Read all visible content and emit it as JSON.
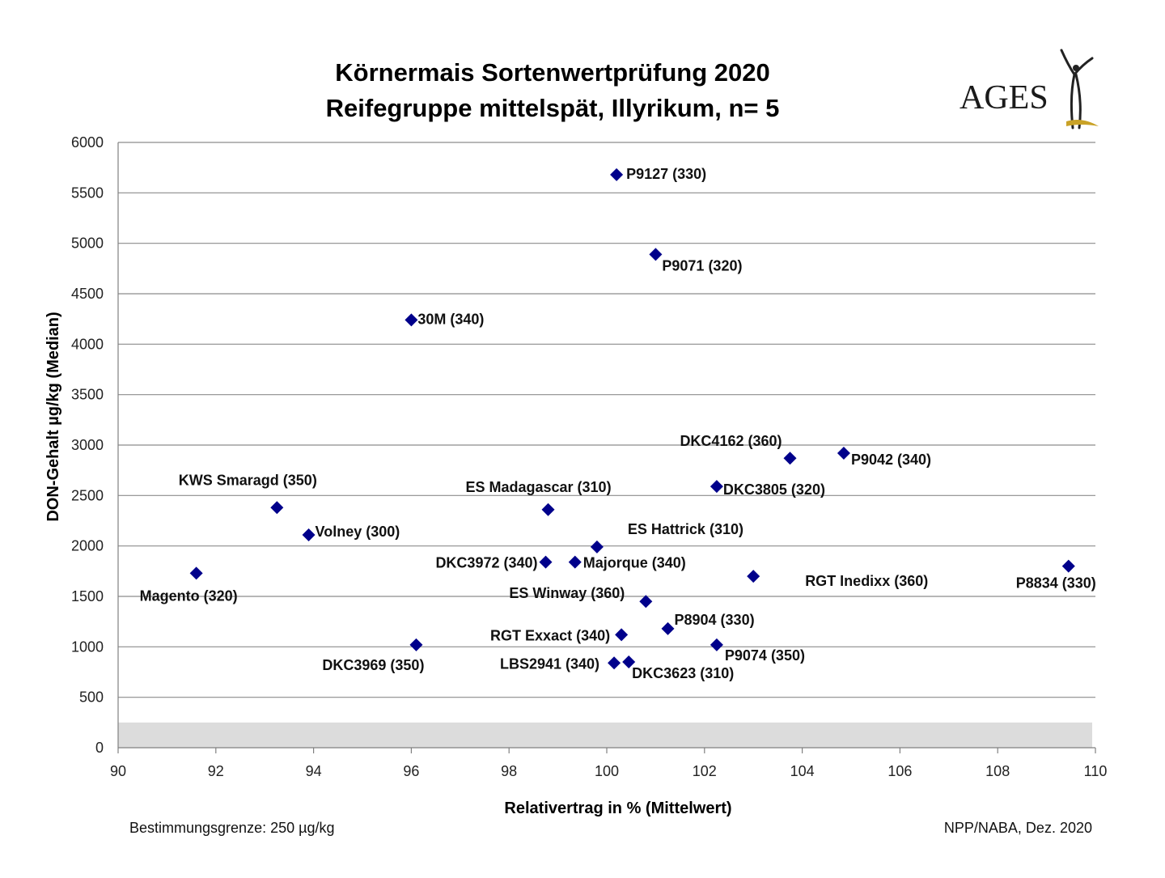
{
  "chart_data": {
    "type": "scatter",
    "title": "Körnermais Sortenwertprüfung 2020",
    "subtitle": "Reifegruppe mittelspät, Illyrikum, n= 5",
    "xlabel": "Relativertrag in % (Mittelwert)",
    "ylabel": "DON-Gehalt µg/kg (Median)",
    "xlim": [
      90,
      110
    ],
    "ylim": [
      0,
      6000
    ],
    "x_ticks": [
      90,
      92,
      94,
      96,
      98,
      100,
      102,
      104,
      106,
      108,
      110
    ],
    "y_ticks": [
      0,
      500,
      1000,
      1500,
      2000,
      2500,
      3000,
      3500,
      4000,
      4500,
      5000,
      5500,
      6000
    ],
    "grid": "horizontal",
    "detection_limit": 250,
    "marker_color": "#00008B",
    "points": [
      {
        "label": "P9127 (330)",
        "x": 100.2,
        "y": 5680
      },
      {
        "label": "P9071 (320)",
        "x": 101.0,
        "y": 4890
      },
      {
        "label": "30M (340)",
        "x": 96.0,
        "y": 4240
      },
      {
        "label": "DKC4162 (360)",
        "x": 103.75,
        "y": 2870
      },
      {
        "label": "P9042 (340)",
        "x": 104.85,
        "y": 2920
      },
      {
        "label": "DKC3805 (320)",
        "x": 102.25,
        "y": 2590
      },
      {
        "label": "KWS Smaragd (350)",
        "x": 93.25,
        "y": 2380
      },
      {
        "label": "ES Madagascar (310)",
        "x": 98.8,
        "y": 2360
      },
      {
        "label": "Volney (300)",
        "x": 93.9,
        "y": 2110
      },
      {
        "label": "ES Hattrick (310)",
        "x": 99.8,
        "y": 1990
      },
      {
        "label": "DKC3972 (340)",
        "x": 98.75,
        "y": 1840
      },
      {
        "label": "Majorque (340)",
        "x": 99.35,
        "y": 1840
      },
      {
        "label": "P8834 (330)",
        "x": 109.45,
        "y": 1800
      },
      {
        "label": "Magento (320)",
        "x": 91.6,
        "y": 1730
      },
      {
        "label": "RGT Inedixx (360)",
        "x": 103.0,
        "y": 1700
      },
      {
        "label": "ES Winway (360)",
        "x": 100.8,
        "y": 1450
      },
      {
        "label": "P8904 (330)",
        "x": 101.25,
        "y": 1180
      },
      {
        "label": "RGT Exxact (340)",
        "x": 100.3,
        "y": 1120
      },
      {
        "label": "DKC3969 (350)",
        "x": 96.1,
        "y": 1020
      },
      {
        "label": "P9074 (350)",
        "x": 102.25,
        "y": 1020
      },
      {
        "label": "LBS2941 (340)",
        "x": 100.15,
        "y": 840
      },
      {
        "label": "DKC3623 (310)",
        "x": 100.45,
        "y": 850
      }
    ]
  },
  "logo": {
    "text": "AGES"
  },
  "footer": {
    "left": "Bestimmungsgrenze: 250 µg/kg",
    "right": "NPP/NABA, Dez. 2020"
  }
}
